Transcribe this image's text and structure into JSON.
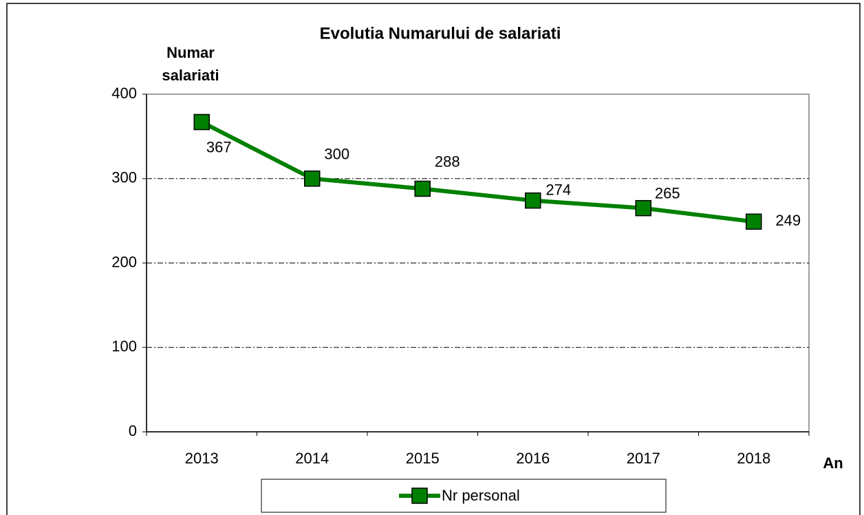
{
  "chart_data": {
    "type": "line",
    "title": "Evolutia Numarului de salariati",
    "y_label": "Numar salariati",
    "x_label": "An",
    "categories": [
      "2013",
      "2014",
      "2015",
      "2016",
      "2017",
      "2018"
    ],
    "series": [
      {
        "name": "Nr personal",
        "color": "#008000",
        "values": [
          367,
          300,
          288,
          274,
          265,
          249
        ]
      }
    ],
    "ylim": [
      0,
      400
    ],
    "yticks": [
      0,
      100,
      200,
      300,
      400
    ],
    "grid": true,
    "legend": "bottom"
  }
}
